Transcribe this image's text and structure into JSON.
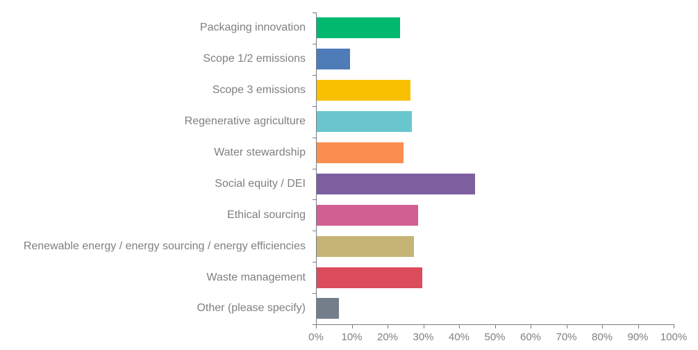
{
  "chart_data": {
    "type": "bar",
    "orientation": "horizontal",
    "title": "",
    "xlabel": "",
    "ylabel": "",
    "grid": false,
    "legend": false,
    "categories": [
      "Packaging innovation",
      "Scope 1/2 emissions",
      "Scope 3 emissions",
      "Regenerative agriculture",
      "Water stewardship",
      "Social equity / DEI",
      "Ethical sourcing",
      "Renewable energy / energy sourcing / energy efficiencies",
      "Waste management",
      "Other (please specify)"
    ],
    "values": [
      23.4,
      9.5,
      26.5,
      26.7,
      24.4,
      44.5,
      28.6,
      27.4,
      29.8,
      6.4
    ],
    "bar_colors": [
      "#00b96f",
      "#4e7cb9",
      "#f9c001",
      "#6ac6cd",
      "#fc8d51",
      "#7d5fa0",
      "#d25f92",
      "#c6b476",
      "#dc4c5c",
      "#747e8a"
    ],
    "x_axis": {
      "min": 0,
      "max": 100,
      "tick_step": 10,
      "tick_labels": [
        "0%",
        "10%",
        "20%",
        "30%",
        "40%",
        "50%",
        "60%",
        "70%",
        "80%",
        "90%",
        "100%"
      ]
    },
    "text_color": "#7f7f7f",
    "axis_color": "#747c83"
  }
}
